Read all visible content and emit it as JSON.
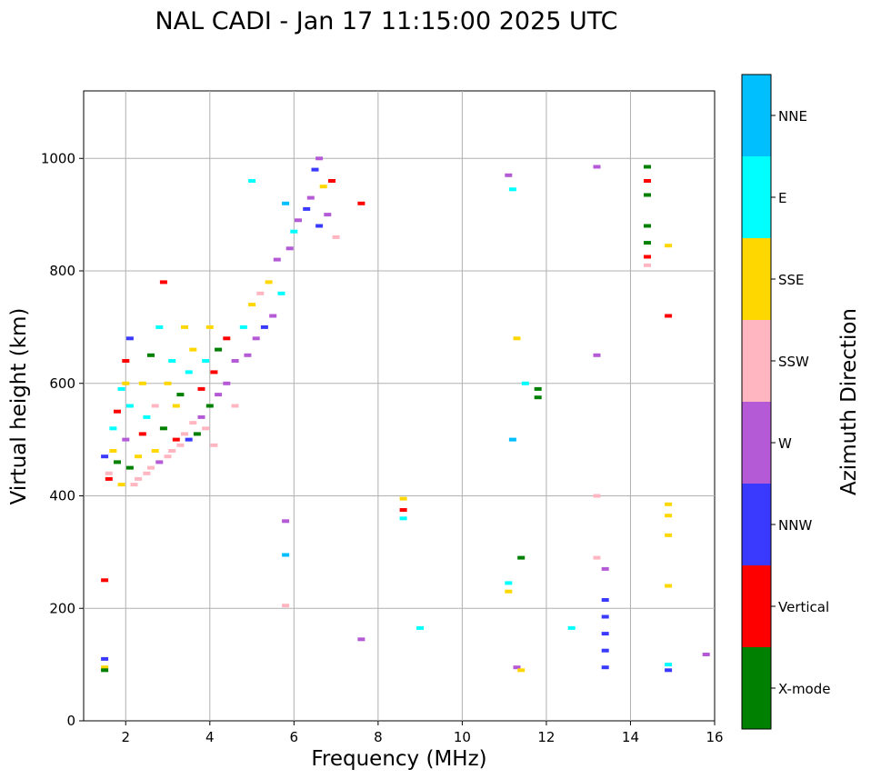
{
  "chart_data": {
    "type": "scatter",
    "title": "NAL CADI - Jan 17 11:15:00 2025 UTC",
    "xlabel": "Frequency (MHz)",
    "ylabel": "Virtual height (km)",
    "xlim": [
      1,
      16
    ],
    "ylim": [
      0,
      1120
    ],
    "xticks": [
      2,
      4,
      6,
      8,
      10,
      12,
      14,
      16
    ],
    "yticks": [
      0,
      200,
      400,
      600,
      800,
      1000
    ],
    "grid": true,
    "colorbar": {
      "label": "Azimuth Direction",
      "categories": [
        {
          "name": "X-mode",
          "color": "#008000"
        },
        {
          "name": "Vertical",
          "color": "#ff0000"
        },
        {
          "name": "NNW",
          "color": "#3a3aff"
        },
        {
          "name": "W",
          "color": "#b55ad6"
        },
        {
          "name": "SSW",
          "color": "#ffb6c1"
        },
        {
          "name": "SSE",
          "color": "#ffd700"
        },
        {
          "name": "E",
          "color": "#00ffff"
        },
        {
          "name": "NNE",
          "color": "#00bfff"
        }
      ]
    },
    "points": [
      {
        "f": 1.5,
        "h": 470,
        "c": 2
      },
      {
        "f": 1.6,
        "h": 440,
        "c": 4
      },
      {
        "f": 1.6,
        "h": 430,
        "c": 1
      },
      {
        "f": 1.7,
        "h": 480,
        "c": 5
      },
      {
        "f": 1.7,
        "h": 520,
        "c": 6
      },
      {
        "f": 1.8,
        "h": 550,
        "c": 1
      },
      {
        "f": 1.8,
        "h": 460,
        "c": 0
      },
      {
        "f": 1.9,
        "h": 590,
        "c": 6
      },
      {
        "f": 1.9,
        "h": 420,
        "c": 5
      },
      {
        "f": 2.0,
        "h": 640,
        "c": 1
      },
      {
        "f": 2.0,
        "h": 600,
        "c": 5
      },
      {
        "f": 2.0,
        "h": 500,
        "c": 3
      },
      {
        "f": 2.1,
        "h": 680,
        "c": 2
      },
      {
        "f": 2.1,
        "h": 560,
        "c": 6
      },
      {
        "f": 2.1,
        "h": 450,
        "c": 0
      },
      {
        "f": 2.2,
        "h": 420,
        "c": 4
      },
      {
        "f": 2.3,
        "h": 430,
        "c": 4
      },
      {
        "f": 2.3,
        "h": 470,
        "c": 5
      },
      {
        "f": 2.4,
        "h": 510,
        "c": 1
      },
      {
        "f": 2.4,
        "h": 600,
        "c": 5
      },
      {
        "f": 2.5,
        "h": 440,
        "c": 4
      },
      {
        "f": 2.5,
        "h": 540,
        "c": 6
      },
      {
        "f": 2.6,
        "h": 450,
        "c": 4
      },
      {
        "f": 2.6,
        "h": 650,
        "c": 0
      },
      {
        "f": 2.7,
        "h": 480,
        "c": 5
      },
      {
        "f": 2.7,
        "h": 560,
        "c": 4
      },
      {
        "f": 2.8,
        "h": 700,
        "c": 6
      },
      {
        "f": 2.8,
        "h": 460,
        "c": 3
      },
      {
        "f": 2.9,
        "h": 780,
        "c": 1
      },
      {
        "f": 2.9,
        "h": 520,
        "c": 0
      },
      {
        "f": 3.0,
        "h": 470,
        "c": 4
      },
      {
        "f": 3.0,
        "h": 600,
        "c": 5
      },
      {
        "f": 3.1,
        "h": 480,
        "c": 4
      },
      {
        "f": 3.1,
        "h": 640,
        "c": 6
      },
      {
        "f": 3.2,
        "h": 500,
        "c": 1
      },
      {
        "f": 3.2,
        "h": 560,
        "c": 5
      },
      {
        "f": 3.3,
        "h": 490,
        "c": 4
      },
      {
        "f": 3.3,
        "h": 580,
        "c": 0
      },
      {
        "f": 3.4,
        "h": 510,
        "c": 4
      },
      {
        "f": 3.4,
        "h": 700,
        "c": 5
      },
      {
        "f": 3.5,
        "h": 500,
        "c": 2
      },
      {
        "f": 3.5,
        "h": 620,
        "c": 6
      },
      {
        "f": 3.6,
        "h": 530,
        "c": 4
      },
      {
        "f": 3.6,
        "h": 660,
        "c": 5
      },
      {
        "f": 3.7,
        "h": 510,
        "c": 0
      },
      {
        "f": 3.8,
        "h": 540,
        "c": 3
      },
      {
        "f": 3.8,
        "h": 590,
        "c": 1
      },
      {
        "f": 3.9,
        "h": 520,
        "c": 4
      },
      {
        "f": 3.9,
        "h": 640,
        "c": 6
      },
      {
        "f": 4.0,
        "h": 560,
        "c": 0
      },
      {
        "f": 4.0,
        "h": 700,
        "c": 5
      },
      {
        "f": 4.1,
        "h": 620,
        "c": 1
      },
      {
        "f": 4.1,
        "h": 490,
        "c": 4
      },
      {
        "f": 4.2,
        "h": 580,
        "c": 3
      },
      {
        "f": 4.2,
        "h": 660,
        "c": 0
      },
      {
        "f": 4.4,
        "h": 600,
        "c": 3
      },
      {
        "f": 4.4,
        "h": 680,
        "c": 1
      },
      {
        "f": 4.6,
        "h": 640,
        "c": 3
      },
      {
        "f": 4.6,
        "h": 560,
        "c": 4
      },
      {
        "f": 4.8,
        "h": 700,
        "c": 6
      },
      {
        "f": 4.9,
        "h": 650,
        "c": 3
      },
      {
        "f": 5.0,
        "h": 740,
        "c": 5
      },
      {
        "f": 5.0,
        "h": 960,
        "c": 6
      },
      {
        "f": 5.1,
        "h": 680,
        "c": 3
      },
      {
        "f": 5.2,
        "h": 760,
        "c": 4
      },
      {
        "f": 5.3,
        "h": 700,
        "c": 2
      },
      {
        "f": 5.4,
        "h": 780,
        "c": 5
      },
      {
        "f": 5.5,
        "h": 720,
        "c": 3
      },
      {
        "f": 5.6,
        "h": 820,
        "c": 3
      },
      {
        "f": 5.7,
        "h": 760,
        "c": 6
      },
      {
        "f": 5.8,
        "h": 920,
        "c": 7
      },
      {
        "f": 5.9,
        "h": 840,
        "c": 3
      },
      {
        "f": 6.0,
        "h": 870,
        "c": 6
      },
      {
        "f": 6.1,
        "h": 890,
        "c": 3
      },
      {
        "f": 6.3,
        "h": 910,
        "c": 2
      },
      {
        "f": 6.4,
        "h": 930,
        "c": 3
      },
      {
        "f": 6.5,
        "h": 980,
        "c": 2
      },
      {
        "f": 6.6,
        "h": 1000,
        "c": 3
      },
      {
        "f": 6.6,
        "h": 880,
        "c": 2
      },
      {
        "f": 6.7,
        "h": 950,
        "c": 5
      },
      {
        "f": 6.8,
        "h": 900,
        "c": 3
      },
      {
        "f": 6.9,
        "h": 960,
        "c": 1
      },
      {
        "f": 7.0,
        "h": 860,
        "c": 4
      },
      {
        "f": 7.6,
        "h": 920,
        "c": 1
      },
      {
        "f": 8.6,
        "h": 395,
        "c": 5
      },
      {
        "f": 8.6,
        "h": 375,
        "c": 1
      },
      {
        "f": 8.6,
        "h": 360,
        "c": 6
      },
      {
        "f": 9.0,
        "h": 165,
        "c": 6
      },
      {
        "f": 11.1,
        "h": 970,
        "c": 3
      },
      {
        "f": 11.2,
        "h": 945,
        "c": 6
      },
      {
        "f": 11.2,
        "h": 500,
        "c": 7
      },
      {
        "f": 11.3,
        "h": 680,
        "c": 5
      },
      {
        "f": 11.5,
        "h": 600,
        "c": 6
      },
      {
        "f": 11.8,
        "h": 590,
        "c": 0
      },
      {
        "f": 11.8,
        "h": 575,
        "c": 0
      },
      {
        "f": 11.4,
        "h": 290,
        "c": 0
      },
      {
        "f": 11.1,
        "h": 245,
        "c": 6
      },
      {
        "f": 11.1,
        "h": 230,
        "c": 5
      },
      {
        "f": 11.3,
        "h": 95,
        "c": 3
      },
      {
        "f": 11.4,
        "h": 90,
        "c": 5
      },
      {
        "f": 12.6,
        "h": 165,
        "c": 6
      },
      {
        "f": 13.2,
        "h": 985,
        "c": 3
      },
      {
        "f": 13.2,
        "h": 650,
        "c": 3
      },
      {
        "f": 13.2,
        "h": 400,
        "c": 4
      },
      {
        "f": 13.2,
        "h": 290,
        "c": 4
      },
      {
        "f": 13.4,
        "h": 270,
        "c": 3
      },
      {
        "f": 13.4,
        "h": 215,
        "c": 2
      },
      {
        "f": 13.4,
        "h": 185,
        "c": 2
      },
      {
        "f": 13.4,
        "h": 155,
        "c": 2
      },
      {
        "f": 13.4,
        "h": 125,
        "c": 2
      },
      {
        "f": 13.4,
        "h": 95,
        "c": 2
      },
      {
        "f": 14.4,
        "h": 985,
        "c": 0
      },
      {
        "f": 14.4,
        "h": 960,
        "c": 1
      },
      {
        "f": 14.4,
        "h": 935,
        "c": 0
      },
      {
        "f": 14.4,
        "h": 880,
        "c": 0
      },
      {
        "f": 14.4,
        "h": 850,
        "c": 0
      },
      {
        "f": 14.4,
        "h": 825,
        "c": 1
      },
      {
        "f": 14.4,
        "h": 810,
        "c": 4
      },
      {
        "f": 14.9,
        "h": 845,
        "c": 5
      },
      {
        "f": 14.9,
        "h": 720,
        "c": 1
      },
      {
        "f": 14.9,
        "h": 385,
        "c": 5
      },
      {
        "f": 14.9,
        "h": 365,
        "c": 5
      },
      {
        "f": 14.9,
        "h": 330,
        "c": 5
      },
      {
        "f": 14.9,
        "h": 240,
        "c": 5
      },
      {
        "f": 14.9,
        "h": 90,
        "c": 2
      },
      {
        "f": 14.9,
        "h": 100,
        "c": 6
      },
      {
        "f": 15.8,
        "h": 118,
        "c": 3
      },
      {
        "f": 1.5,
        "h": 250,
        "c": 1
      },
      {
        "f": 1.5,
        "h": 110,
        "c": 2
      },
      {
        "f": 1.5,
        "h": 95,
        "c": 5
      },
      {
        "f": 1.5,
        "h": 90,
        "c": 0
      },
      {
        "f": 5.8,
        "h": 355,
        "c": 3
      },
      {
        "f": 5.8,
        "h": 295,
        "c": 7
      },
      {
        "f": 5.8,
        "h": 205,
        "c": 4
      },
      {
        "f": 7.6,
        "h": 145,
        "c": 3
      }
    ]
  }
}
